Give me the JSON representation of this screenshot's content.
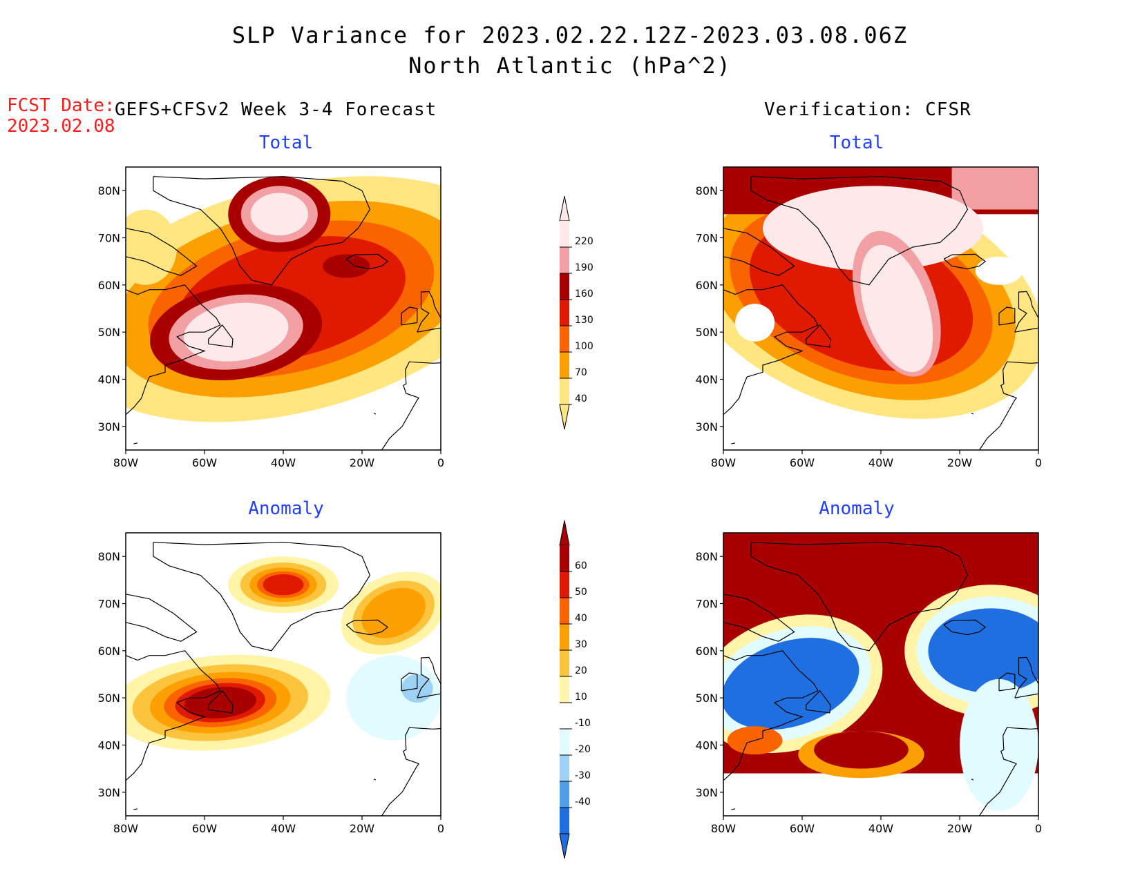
{
  "header": {
    "title_line1": "SLP Variance for 2023.02.22.12Z-2023.03.08.06Z",
    "title_line2": "North Atlantic (hPa^2)"
  },
  "fcst": {
    "label": "FCST Date:",
    "date": "2023.02.08"
  },
  "columns": {
    "left": "GEFS+CFSv2 Week 3-4 Forecast",
    "right": "Verification: CFSR"
  },
  "panels": [
    {
      "title": "Total",
      "kind": "total",
      "pattern": "forecast"
    },
    {
      "title": "Total",
      "kind": "total",
      "pattern": "verification"
    },
    {
      "title": "Anomaly",
      "kind": "anomaly",
      "pattern": "forecast"
    },
    {
      "title": "Anomaly",
      "kind": "anomaly",
      "pattern": "verification"
    }
  ],
  "axes": {
    "lat_labels": [
      "80N",
      "70N",
      "60N",
      "50N",
      "40N",
      "30N"
    ],
    "lat_values": [
      80,
      70,
      60,
      50,
      40,
      30
    ],
    "lon_labels": [
      "80W",
      "60W",
      "40W",
      "20W",
      "0"
    ],
    "lon_values": [
      -80,
      -60,
      -40,
      -20,
      0
    ],
    "lat_range": [
      25,
      85
    ],
    "lon_range": [
      -80,
      0
    ]
  },
  "colorbars": {
    "total": {
      "labels": [
        "220",
        "190",
        "160",
        "130",
        "100",
        "70",
        "40"
      ],
      "colors": [
        "#fde9e9",
        "#f2a0a3",
        "#a80000",
        "#e01a00",
        "#fa6400",
        "#fba000",
        "#ffe680"
      ]
    },
    "anomaly": {
      "labels": [
        "60",
        "50",
        "40",
        "30",
        "20",
        "10",
        "-10",
        "-20",
        "-30",
        "-40"
      ],
      "colors": [
        "#a80000",
        "#e01a00",
        "#fa6400",
        "#fba000",
        "#fcc43c",
        "#fff4a8",
        "#ffffff",
        "#e1fbff",
        "#9ed2f5",
        "#4f9ee8",
        "#1f6fe0"
      ]
    }
  },
  "levels": {
    "total_fill": [
      "#ffe680",
      "#fba000",
      "#fa6400",
      "#e01a00",
      "#a80000",
      "#f2a0a3",
      "#fde9e9"
    ],
    "anomaly_pos": [
      "#fff4a8",
      "#fcc43c",
      "#fba000",
      "#fa6400",
      "#e01a00",
      "#a80000"
    ],
    "anomaly_neg": [
      "#e1fbff",
      "#9ed2f5",
      "#4f9ee8",
      "#1f6fe0"
    ]
  }
}
